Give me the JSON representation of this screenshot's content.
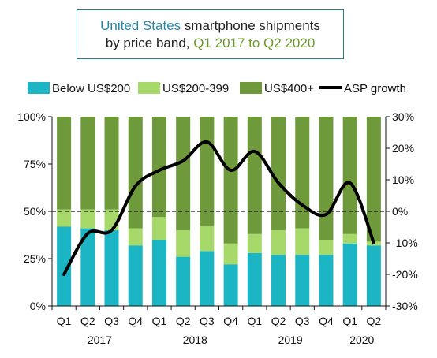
{
  "title": {
    "line1_highlight": "United States",
    "line1_rest": " smartphone shipments",
    "line2_prefix": "by price band, ",
    "line2_highlight": "Q1 2017 to Q2 2020"
  },
  "colors": {
    "below200": "#1bb5c4",
    "mid": "#a6d96a",
    "high": "#6e9a3c",
    "asp": "#000000",
    "title_teal": "#2a88a6",
    "title_olive": "#6a9a2e",
    "title_border": "#2a7b8e"
  },
  "chart_data": {
    "type": "bar",
    "stacked": true,
    "quarters": [
      "Q1",
      "Q2",
      "Q3",
      "Q4",
      "Q1",
      "Q2",
      "Q3",
      "Q4",
      "Q1",
      "Q2",
      "Q3",
      "Q4",
      "Q1",
      "Q2"
    ],
    "years": [
      {
        "label": "2017",
        "from": 0,
        "to": 3
      },
      {
        "label": "2018",
        "from": 4,
        "to": 7
      },
      {
        "label": "2019",
        "from": 8,
        "to": 11
      },
      {
        "label": "2020",
        "from": 12,
        "to": 13
      }
    ],
    "series": [
      {
        "name": "Below US$200",
        "values": [
          42,
          41,
          40,
          32,
          35,
          26,
          29,
          22,
          28,
          27,
          27,
          27,
          33,
          32
        ],
        "axis": "left"
      },
      {
        "name": "US$200-399",
        "values": [
          9,
          10,
          11,
          9,
          12,
          14,
          13,
          11,
          10,
          13,
          14,
          8,
          5,
          2
        ],
        "axis": "left"
      },
      {
        "name": "US$400+",
        "values": [
          49,
          49,
          49,
          59,
          53,
          60,
          58,
          67,
          62,
          60,
          59,
          65,
          62,
          66
        ],
        "axis": "left"
      },
      {
        "name": "ASP growth",
        "type": "line",
        "values": [
          -20,
          -7,
          -6,
          8,
          13,
          16,
          22,
          13,
          19,
          9,
          2,
          -1,
          9,
          -10
        ],
        "axis": "right"
      }
    ],
    "ylim_left": [
      0,
      100
    ],
    "yticks_left": [
      "0%",
      "25%",
      "50%",
      "75%",
      "100%"
    ],
    "ylim_right": [
      -30,
      30
    ],
    "yticks_right": [
      "-30%",
      "-20%",
      "-10%",
      "0%",
      "10%",
      "20%",
      "30%"
    ],
    "reference_line": "dashed line at 50% / 0%",
    "legend_position": "top",
    "grid": false
  }
}
